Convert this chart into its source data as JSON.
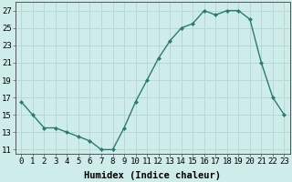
{
  "x": [
    0,
    1,
    2,
    3,
    4,
    5,
    6,
    7,
    8,
    9,
    10,
    11,
    12,
    13,
    14,
    15,
    16,
    17,
    18,
    19,
    20,
    21,
    22,
    23
  ],
  "y": [
    16.5,
    15.0,
    13.5,
    13.5,
    13.0,
    12.5,
    12.0,
    11.0,
    11.0,
    13.5,
    16.5,
    19.0,
    21.5,
    23.5,
    25.0,
    25.5,
    27.0,
    26.5,
    27.0,
    27.0,
    26.0,
    21.0,
    17.0,
    15.0
  ],
  "line_color": "#2a7d6e",
  "marker": "D",
  "marker_size": 2.0,
  "bg_color": "#ceecea",
  "grid_color": "#b8d8d5",
  "xlabel": "Humidex (Indice chaleur)",
  "ylabel": "",
  "title": "",
  "xlim": [
    -0.5,
    23.5
  ],
  "ylim": [
    10.5,
    28
  ],
  "yticks": [
    11,
    13,
    15,
    17,
    19,
    21,
    23,
    25,
    27
  ],
  "xticks": [
    0,
    1,
    2,
    3,
    4,
    5,
    6,
    7,
    8,
    9,
    10,
    11,
    12,
    13,
    14,
    15,
    16,
    17,
    18,
    19,
    20,
    21,
    22,
    23
  ],
  "tick_label_fontsize": 6.5,
  "xlabel_fontsize": 7.5,
  "line_width": 1.0
}
